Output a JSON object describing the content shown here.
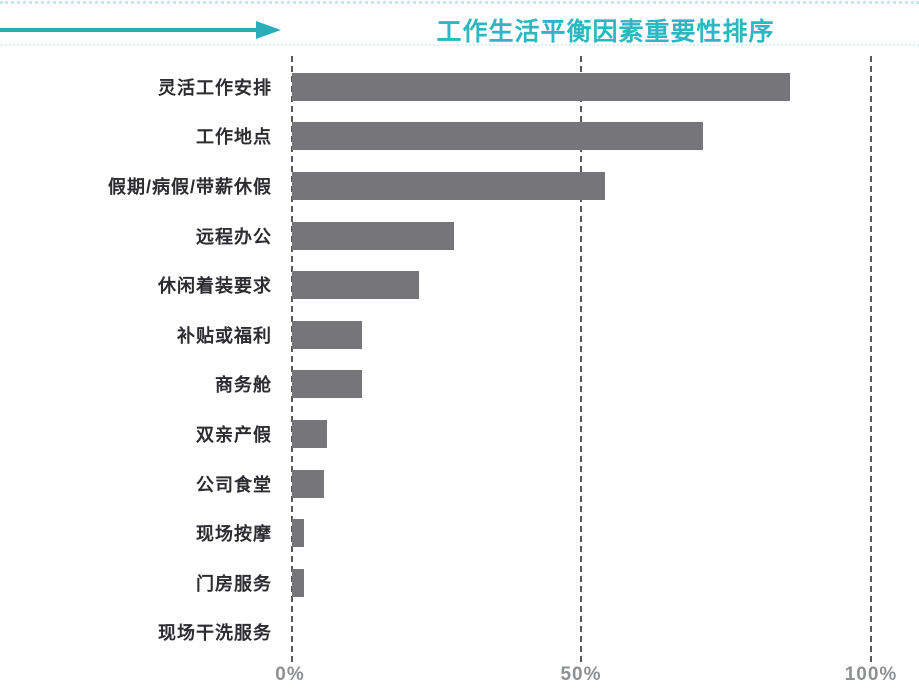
{
  "header": {
    "title": "工作生活平衡因素重要性排序",
    "title_color": "#2db7c0",
    "arrow_color": "#2aadb8"
  },
  "chart_data": {
    "type": "bar",
    "orientation": "horizontal",
    "title": "工作生活平衡因素重要性排序",
    "categories": [
      "灵活工作安排",
      "工作地点",
      "假期/病假/带薪休假",
      "远程办公",
      "休闲着装要求",
      "补贴或福利",
      "商务舱",
      "双亲产假",
      "公司食堂",
      "现场按摩",
      "门房服务",
      "现场干洗服务"
    ],
    "values": [
      86,
      71,
      54,
      28,
      22,
      12,
      12,
      6,
      5.5,
      2,
      2,
      0
    ],
    "xlabel": "",
    "ylabel": "",
    "xlim": [
      0,
      100
    ],
    "x_ticks": [
      "0%",
      "50%",
      "100%"
    ],
    "x_tick_values": [
      0,
      50,
      100
    ],
    "grid": "vertical-dashed",
    "legend": "none",
    "bar_color": "#76767a",
    "gridline_color": "#59595b",
    "label_color": "#2d2d31",
    "tick_label_color": "#8f9093"
  }
}
